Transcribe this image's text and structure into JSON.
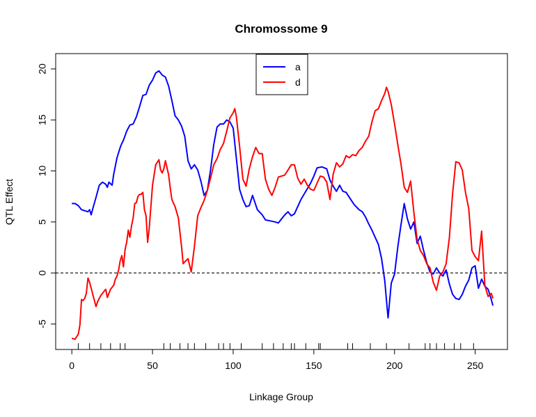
{
  "chart_data": {
    "type": "line",
    "title": "Chromossome 9",
    "xlabel": "Linkage Group",
    "ylabel": "QTL Effect",
    "xlim": [
      -10,
      270
    ],
    "ylim": [
      -7.5,
      21.5
    ],
    "xticks": [
      0,
      50,
      100,
      150,
      200,
      250
    ],
    "yticks": [
      -5,
      0,
      5,
      10,
      15,
      20
    ],
    "reference_line": {
      "y": 0,
      "style": "dashed"
    },
    "legend": {
      "position": "top-center",
      "entries": [
        "a",
        "d"
      ]
    },
    "marker_positions": [
      4,
      11,
      18,
      24,
      30,
      33,
      57,
      61,
      67,
      72,
      76,
      83,
      91,
      94,
      98,
      105,
      118,
      125,
      131,
      136,
      138,
      145,
      153,
      154,
      171,
      174,
      185,
      195,
      209,
      219,
      222,
      226,
      231,
      237,
      241,
      249
    ],
    "series": [
      {
        "name": "a",
        "color": "#0000ff",
        "x": [
          0,
          2,
          4,
          6,
          8,
          10,
          11,
          12,
          13,
          15,
          17,
          19,
          21,
          22,
          23,
          25,
          26,
          28,
          30,
          31,
          32,
          34,
          36,
          38,
          40,
          42,
          44,
          46,
          48,
          50,
          52,
          54,
          56,
          58,
          60,
          62,
          64,
          66,
          68,
          70,
          72,
          74,
          76,
          78,
          80,
          82,
          84,
          86,
          88,
          90,
          92,
          94,
          96,
          98,
          100,
          102,
          104,
          106,
          108,
          110,
          112,
          115,
          118,
          120,
          123,
          126,
          128,
          130,
          132,
          134,
          136,
          138,
          140,
          142,
          145,
          148,
          150,
          152,
          155,
          158,
          160,
          162,
          164,
          166,
          168,
          170,
          172,
          175,
          178,
          180,
          182,
          184,
          186,
          188,
          190,
          192,
          194,
          195,
          196,
          198,
          200,
          202,
          204,
          206,
          208,
          210,
          212,
          214,
          216,
          218,
          220,
          222,
          224,
          226,
          228,
          230,
          232,
          234,
          236,
          238,
          240,
          242,
          244,
          246,
          248,
          250,
          252,
          254,
          256,
          258,
          260,
          261
        ],
        "y": [
          6.8,
          6.8,
          6.6,
          6.2,
          6.1,
          6.0,
          6.2,
          5.7,
          6.3,
          7.4,
          8.6,
          8.9,
          8.7,
          8.4,
          8.9,
          8.6,
          9.7,
          11.3,
          12.3,
          12.7,
          13.0,
          13.9,
          14.5,
          14.6,
          15.3,
          16.3,
          17.4,
          17.5,
          18.4,
          18.9,
          19.6,
          19.8,
          19.4,
          19.2,
          18.3,
          16.9,
          15.4,
          15.0,
          14.4,
          13.4,
          11.0,
          10.2,
          10.6,
          10.1,
          9.0,
          7.6,
          8.1,
          10.1,
          12.6,
          14.3,
          14.6,
          14.6,
          15.0,
          14.8,
          14.2,
          11.2,
          8.2,
          7.2,
          6.5,
          6.6,
          7.6,
          6.2,
          5.7,
          5.2,
          5.1,
          5.0,
          4.9,
          5.3,
          5.7,
          6.0,
          5.6,
          5.8,
          6.5,
          7.2,
          8.0,
          8.8,
          9.5,
          10.3,
          10.4,
          10.2,
          9.1,
          8.5,
          8.0,
          8.6,
          8.0,
          7.9,
          7.4,
          6.7,
          6.2,
          6.0,
          5.5,
          4.8,
          4.2,
          3.5,
          2.8,
          1.4,
          -0.8,
          -2.7,
          -4.4,
          -1.0,
          -0.1,
          2.5,
          4.7,
          6.8,
          5.3,
          4.3,
          5.0,
          2.9,
          3.6,
          2.2,
          1.0,
          0.1,
          -0.1,
          0.5,
          0.0,
          -0.3,
          0.3,
          -1.1,
          -2.1,
          -2.5,
          -2.6,
          -2.1,
          -1.3,
          -0.7,
          0.5,
          0.7,
          -1.5,
          -0.6,
          -1.3,
          -1.6,
          -2.6,
          -3.2
        ]
      },
      {
        "name": "d",
        "color": "#ff0000",
        "x": [
          0,
          2,
          4,
          5,
          6,
          7,
          8,
          9,
          10,
          11,
          13,
          15,
          16,
          18,
          20,
          21,
          22,
          24,
          26,
          27,
          28,
          29,
          30,
          31,
          32,
          33,
          34,
          35,
          36,
          37,
          38,
          39,
          40,
          41,
          42,
          43,
          44,
          45,
          46,
          47,
          48,
          50,
          52,
          54,
          55,
          56,
          57,
          58,
          60,
          61,
          62,
          64,
          66,
          68,
          69,
          70,
          72,
          74,
          76,
          78,
          80,
          82,
          84,
          86,
          88,
          90,
          92,
          94,
          96,
          98,
          100,
          101,
          102,
          104,
          106,
          108,
          110,
          112,
          114,
          116,
          118,
          120,
          122,
          124,
          126,
          128,
          130,
          132,
          134,
          136,
          138,
          140,
          142,
          144,
          146,
          148,
          150,
          152,
          154,
          156,
          158,
          160,
          162,
          164,
          166,
          168,
          170,
          172,
          174,
          176,
          178,
          180,
          182,
          184,
          186,
          188,
          190,
          192,
          194,
          195,
          196,
          198,
          200,
          202,
          204,
          206,
          208,
          210,
          212,
          214,
          216,
          218,
          220,
          222,
          224,
          226,
          228,
          230,
          232,
          234,
          236,
          238,
          240,
          242,
          244,
          246,
          248,
          250,
          252,
          254,
          256,
          258,
          260,
          261
        ],
        "y": [
          -6.4,
          -6.5,
          -6.0,
          -5.1,
          -2.6,
          -2.7,
          -2.5,
          -2.0,
          -0.5,
          -0.9,
          -2.1,
          -3.3,
          -2.8,
          -2.2,
          -1.8,
          -1.6,
          -2.4,
          -1.6,
          -1.2,
          -0.6,
          -0.3,
          0.3,
          1.2,
          1.7,
          0.6,
          2.3,
          3.0,
          4.2,
          3.5,
          4.6,
          5.4,
          6.8,
          6.9,
          7.5,
          7.7,
          7.7,
          7.9,
          6.2,
          5.6,
          3.0,
          4.4,
          8.6,
          10.6,
          11.1,
          10.1,
          9.8,
          10.2,
          11.0,
          9.6,
          8.3,
          7.2,
          6.5,
          5.4,
          2.6,
          0.9,
          1.1,
          1.4,
          0.1,
          2.6,
          5.6,
          6.4,
          7.1,
          8.1,
          9.3,
          10.6,
          11.2,
          12.1,
          12.7,
          13.9,
          15.2,
          15.7,
          16.1,
          15.3,
          12.4,
          9.2,
          8.5,
          10.2,
          11.4,
          12.3,
          11.7,
          11.7,
          9.2,
          8.2,
          7.6,
          8.4,
          9.4,
          9.5,
          9.6,
          10.1,
          10.6,
          10.6,
          9.3,
          8.7,
          9.2,
          8.6,
          8.2,
          8.1,
          8.8,
          9.5,
          9.4,
          8.9,
          7.2,
          9.7,
          10.8,
          10.4,
          10.7,
          11.5,
          11.3,
          11.6,
          11.5,
          12.0,
          12.3,
          12.9,
          13.4,
          14.8,
          15.9,
          16.1,
          16.9,
          17.6,
          18.2,
          17.8,
          16.5,
          14.6,
          12.6,
          10.7,
          8.4,
          7.9,
          9.0,
          5.9,
          3.3,
          2.2,
          1.7,
          0.9,
          0.5,
          -0.9,
          -1.7,
          -0.3,
          0.1,
          0.9,
          3.5,
          7.8,
          10.9,
          10.8,
          10.1,
          7.9,
          6.3,
          2.2,
          1.6,
          1.2,
          4.1,
          -1.2,
          -2.3,
          -2.0,
          -2.5
        ]
      }
    ]
  }
}
